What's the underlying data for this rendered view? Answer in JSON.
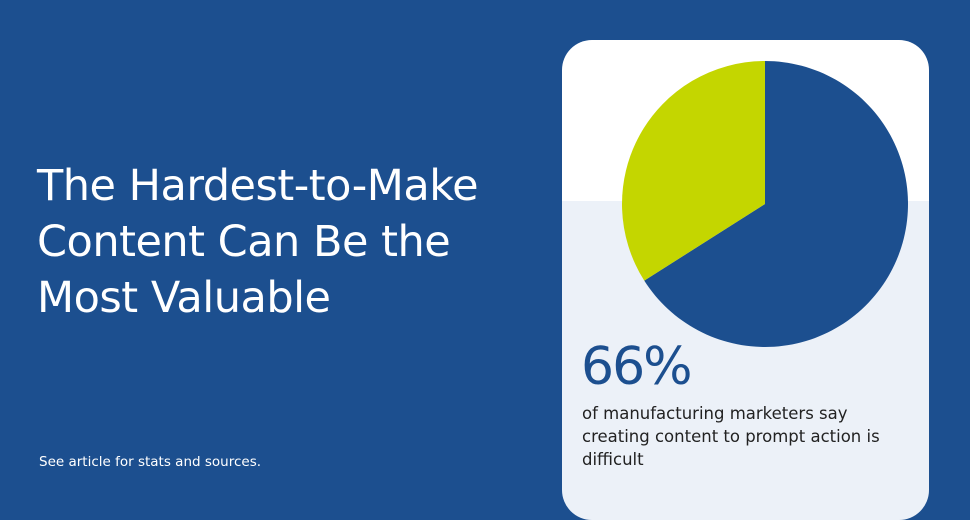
{
  "title": "The Hardest-to-Make Content Can Be the Most Valuable",
  "footer": "See article for stats and sources.",
  "colors": {
    "background": "#1c4f8f",
    "primary": "#1c4f8f",
    "accent": "#c4d600",
    "card_light": "#ecf1f8"
  },
  "stat": {
    "value": "66%",
    "description": "of manufacturing marketers say creating content to prompt action is difficult"
  },
  "chart_data": {
    "type": "pie",
    "values": [
      66,
      34
    ],
    "colors": [
      "#1c4f8f",
      "#c4d600"
    ]
  }
}
